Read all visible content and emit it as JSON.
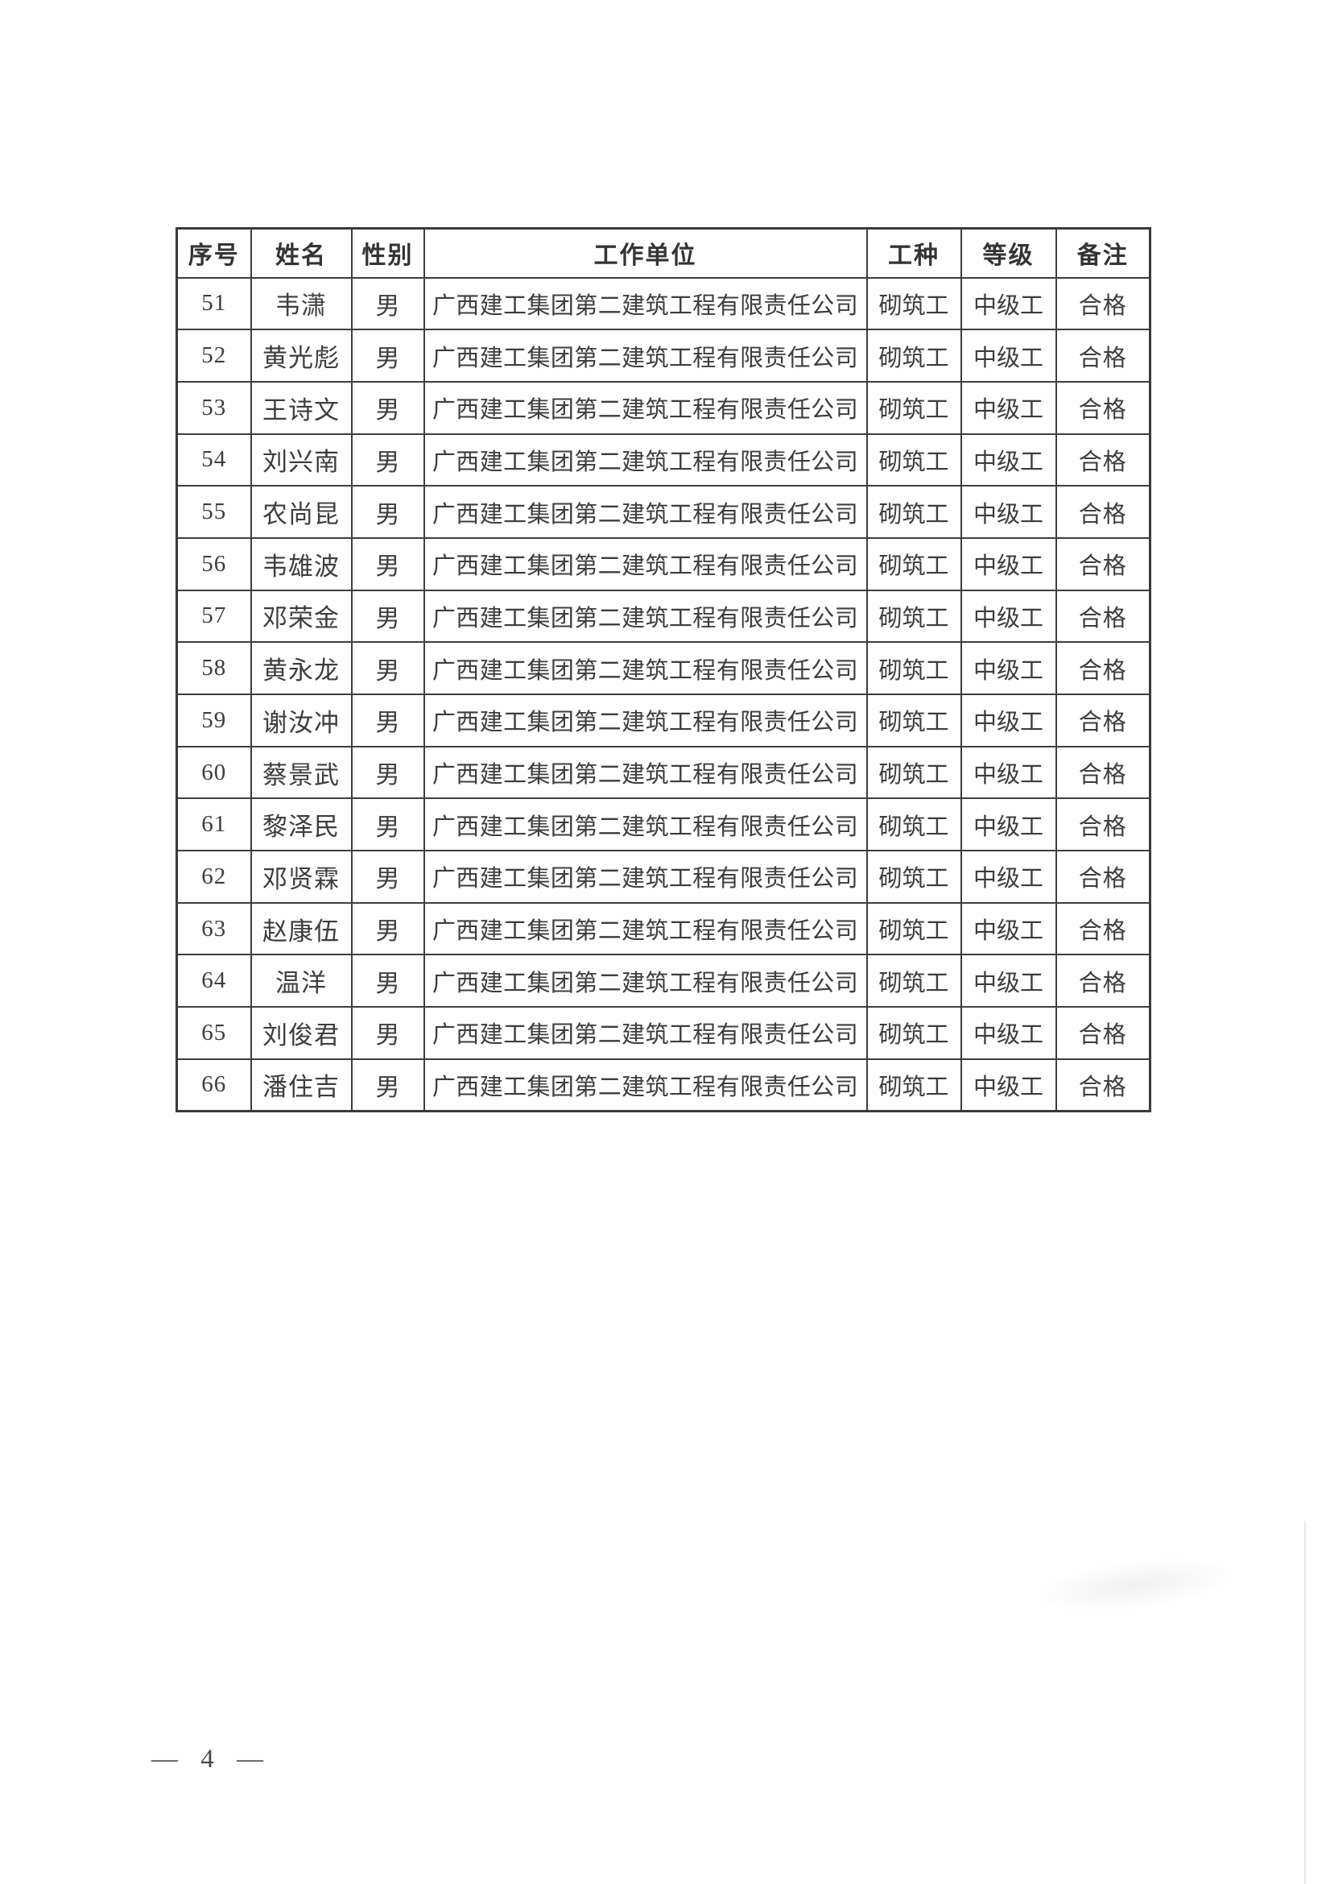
{
  "colors": {
    "paper": "#fefefe",
    "ink": "#3b3b3b",
    "table_border": "#3e3e3e",
    "footer_ink": "#4a4a4a"
  },
  "table": {
    "headers": [
      {
        "key": "no",
        "label": "序号"
      },
      {
        "key": "name",
        "label": "姓名"
      },
      {
        "key": "gender",
        "label": "性别"
      },
      {
        "key": "unit",
        "label": "工作单位"
      },
      {
        "key": "trade",
        "label": "工种"
      },
      {
        "key": "grade",
        "label": "等级"
      },
      {
        "key": "remark",
        "label": "备注"
      }
    ],
    "rows": [
      {
        "no": "51",
        "name": "韦潇",
        "gender": "男",
        "unit": "广西建工集团第二建筑工程有限责任公司",
        "trade": "砌筑工",
        "grade": "中级工",
        "remark": "合格"
      },
      {
        "no": "52",
        "name": "黄光彪",
        "gender": "男",
        "unit": "广西建工集团第二建筑工程有限责任公司",
        "trade": "砌筑工",
        "grade": "中级工",
        "remark": "合格"
      },
      {
        "no": "53",
        "name": "王诗文",
        "gender": "男",
        "unit": "广西建工集团第二建筑工程有限责任公司",
        "trade": "砌筑工",
        "grade": "中级工",
        "remark": "合格"
      },
      {
        "no": "54",
        "name": "刘兴南",
        "gender": "男",
        "unit": "广西建工集团第二建筑工程有限责任公司",
        "trade": "砌筑工",
        "grade": "中级工",
        "remark": "合格"
      },
      {
        "no": "55",
        "name": "农尚昆",
        "gender": "男",
        "unit": "广西建工集团第二建筑工程有限责任公司",
        "trade": "砌筑工",
        "grade": "中级工",
        "remark": "合格"
      },
      {
        "no": "56",
        "name": "韦雄波",
        "gender": "男",
        "unit": "广西建工集团第二建筑工程有限责任公司",
        "trade": "砌筑工",
        "grade": "中级工",
        "remark": "合格"
      },
      {
        "no": "57",
        "name": "邓荣金",
        "gender": "男",
        "unit": "广西建工集团第二建筑工程有限责任公司",
        "trade": "砌筑工",
        "grade": "中级工",
        "remark": "合格"
      },
      {
        "no": "58",
        "name": "黄永龙",
        "gender": "男",
        "unit": "广西建工集团第二建筑工程有限责任公司",
        "trade": "砌筑工",
        "grade": "中级工",
        "remark": "合格"
      },
      {
        "no": "59",
        "name": "谢汝冲",
        "gender": "男",
        "unit": "广西建工集团第二建筑工程有限责任公司",
        "trade": "砌筑工",
        "grade": "中级工",
        "remark": "合格"
      },
      {
        "no": "60",
        "name": "蔡景武",
        "gender": "男",
        "unit": "广西建工集团第二建筑工程有限责任公司",
        "trade": "砌筑工",
        "grade": "中级工",
        "remark": "合格"
      },
      {
        "no": "61",
        "name": "黎泽民",
        "gender": "男",
        "unit": "广西建工集团第二建筑工程有限责任公司",
        "trade": "砌筑工",
        "grade": "中级工",
        "remark": "合格"
      },
      {
        "no": "62",
        "name": "邓贤霖",
        "gender": "男",
        "unit": "广西建工集团第二建筑工程有限责任公司",
        "trade": "砌筑工",
        "grade": "中级工",
        "remark": "合格"
      },
      {
        "no": "63",
        "name": "赵康伍",
        "gender": "男",
        "unit": "广西建工集团第二建筑工程有限责任公司",
        "trade": "砌筑工",
        "grade": "中级工",
        "remark": "合格"
      },
      {
        "no": "64",
        "name": "温洋",
        "gender": "男",
        "unit": "广西建工集团第二建筑工程有限责任公司",
        "trade": "砌筑工",
        "grade": "中级工",
        "remark": "合格"
      },
      {
        "no": "65",
        "name": "刘俊君",
        "gender": "男",
        "unit": "广西建工集团第二建筑工程有限责任公司",
        "trade": "砌筑工",
        "grade": "中级工",
        "remark": "合格"
      },
      {
        "no": "66",
        "name": "潘住吉",
        "gender": "男",
        "unit": "广西建工集团第二建筑工程有限责任公司",
        "trade": "砌筑工",
        "grade": "中级工",
        "remark": "合格"
      }
    ]
  },
  "footer": {
    "page_label": "— 4 —",
    "page_number": "4"
  }
}
